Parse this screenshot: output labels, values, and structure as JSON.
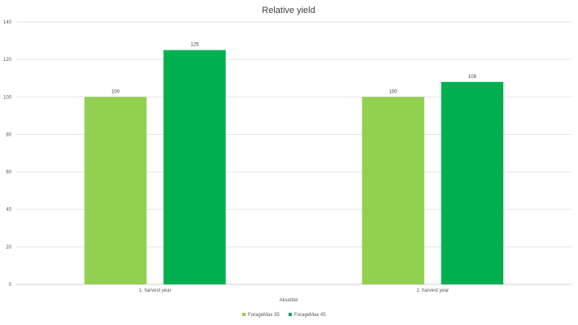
{
  "chart_data": {
    "type": "bar",
    "title": "Relative yield",
    "xlabel": "Aksetitel",
    "ylabel": "",
    "categories": [
      "1. harvest year",
      "2. harvest year"
    ],
    "series": [
      {
        "name": "ForageMax 35",
        "values": [
          100,
          100
        ],
        "color": "#92d050"
      },
      {
        "name": "ForageMax 45",
        "values": [
          125,
          108
        ],
        "color": "#00b050"
      }
    ],
    "ylim": [
      0,
      140
    ],
    "yticks": [
      0,
      20,
      40,
      60,
      80,
      100,
      120,
      140
    ],
    "grid": true,
    "legend": "bottom"
  }
}
